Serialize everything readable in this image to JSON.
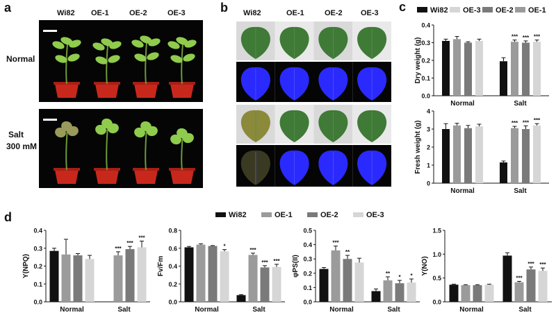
{
  "panel_labels": {
    "a": "a",
    "b": "b",
    "c": "c",
    "d": "d"
  },
  "panel_a": {
    "genotypes": [
      "Wi82",
      "OE-1",
      "OE-2",
      "OE-3"
    ],
    "row_normal": "Normal",
    "row_salt_1": "Salt",
    "row_salt_2": "300 mM"
  },
  "panel_b": {
    "genotypes": [
      "Wi82",
      "OE-1",
      "OE-2",
      "OE-3"
    ]
  },
  "colors": {
    "wi82": "#111111",
    "oe1": "#9b9b9b",
    "oe2": "#7a7a7a",
    "oe3": "#d6d6d6",
    "pot": "#c8281c",
    "leaf_healthy": "#3f7a37",
    "leaf_stressed": "#8a8a3a",
    "chlorophyll_fluor": "#2a2aff"
  },
  "chart_data": [
    {
      "id": "c-dry",
      "type": "bar",
      "legend": [
        "Wi82",
        "OE-3",
        "OE-2",
        "OE-1"
      ],
      "ylabel": "Dry weight (g)",
      "categories": [
        "Normal",
        "Salt"
      ],
      "ylim": [
        0,
        0.4
      ],
      "yticks": [
        "0.0",
        "0.1",
        "0.2",
        "0.3",
        "0.4"
      ],
      "series": [
        {
          "name": "Wi82",
          "values": [
            0.31,
            0.195
          ],
          "errors": [
            0.01,
            0.02
          ],
          "sig": [
            "",
            ""
          ]
        },
        {
          "name": "OE-1",
          "values": [
            0.32,
            0.305
          ],
          "errors": [
            0.015,
            0.01
          ],
          "sig": [
            "",
            "***"
          ]
        },
        {
          "name": "OE-2",
          "values": [
            0.3,
            0.3
          ],
          "errors": [
            0.005,
            0.01
          ],
          "sig": [
            "",
            "***"
          ]
        },
        {
          "name": "OE-3",
          "values": [
            0.31,
            0.305
          ],
          "errors": [
            0.01,
            0.01
          ],
          "sig": [
            "",
            "***"
          ]
        }
      ]
    },
    {
      "id": "c-fresh",
      "type": "bar",
      "ylabel": "Fresh weight (g)",
      "categories": [
        "Normal",
        "Salt"
      ],
      "ylim": [
        0,
        4
      ],
      "yticks": [
        "0",
        "1",
        "2",
        "3",
        "4"
      ],
      "series": [
        {
          "name": "Wi82",
          "values": [
            3.0,
            1.15
          ],
          "errors": [
            0.3,
            0.08
          ],
          "sig": [
            "",
            ""
          ]
        },
        {
          "name": "OE-1",
          "values": [
            3.2,
            3.05
          ],
          "errors": [
            0.12,
            0.1
          ],
          "sig": [
            "",
            "***"
          ]
        },
        {
          "name": "OE-2",
          "values": [
            3.05,
            3.0
          ],
          "errors": [
            0.15,
            0.18
          ],
          "sig": [
            "",
            "***"
          ]
        },
        {
          "name": "OE-3",
          "values": [
            3.15,
            3.2
          ],
          "errors": [
            0.12,
            0.1
          ],
          "sig": [
            "",
            "***"
          ]
        }
      ]
    },
    {
      "id": "d-legend",
      "type": "legend",
      "legend": [
        "Wi82",
        "OE-1",
        "OE-2",
        "OE-3"
      ]
    },
    {
      "id": "d-npq",
      "type": "bar",
      "ylabel": "Y(NPQ)",
      "categories": [
        "Normal",
        "Salt"
      ],
      "ylim": [
        0,
        0.4
      ],
      "yticks": [
        "0.0",
        "0.1",
        "0.2",
        "0.3",
        "0.4"
      ],
      "series": [
        {
          "name": "Wi82",
          "values": [
            0.285,
            0
          ],
          "errors": [
            0.015,
            0
          ],
          "sig": [
            "",
            ""
          ]
        },
        {
          "name": "OE-1",
          "values": [
            0.265,
            0.26
          ],
          "errors": [
            0.085,
            0.02
          ],
          "sig": [
            "",
            "***"
          ]
        },
        {
          "name": "OE-2",
          "values": [
            0.26,
            0.295
          ],
          "errors": [
            0.01,
            0.015
          ],
          "sig": [
            "",
            "***"
          ]
        },
        {
          "name": "OE-3",
          "values": [
            0.24,
            0.305
          ],
          "errors": [
            0.02,
            0.035
          ],
          "sig": [
            "",
            "***"
          ]
        }
      ]
    },
    {
      "id": "d-fvfm",
      "type": "bar",
      "ylabel": "Fv/Fm",
      "categories": [
        "Normal",
        "Salt"
      ],
      "ylim": [
        0,
        0.8
      ],
      "yticks": [
        "0.0",
        "0.2",
        "0.4",
        "0.6",
        "0.8"
      ],
      "series": [
        {
          "name": "Wi82",
          "values": [
            0.61,
            0.075
          ],
          "errors": [
            0.01,
            0.005
          ],
          "sig": [
            "",
            ""
          ]
        },
        {
          "name": "OE-1",
          "values": [
            0.64,
            0.525
          ],
          "errors": [
            0.01,
            0.02
          ],
          "sig": [
            "",
            "***"
          ]
        },
        {
          "name": "OE-2",
          "values": [
            0.625,
            0.385
          ],
          "errors": [
            0.005,
            0.02
          ],
          "sig": [
            "",
            "***"
          ]
        },
        {
          "name": "OE-3",
          "values": [
            0.565,
            0.39
          ],
          "errors": [
            0.02,
            0.03
          ],
          "sig": [
            "*",
            "***"
          ]
        }
      ]
    },
    {
      "id": "d-phips",
      "type": "bar",
      "ylabel": "φPS(II)",
      "categories": [
        "Normal",
        "Salt"
      ],
      "ylim": [
        0,
        0.5
      ],
      "yticks": [
        "0.0",
        "0.1",
        "0.2",
        "0.3",
        "0.4",
        "0.5"
      ],
      "series": [
        {
          "name": "Wi82",
          "values": [
            0.23,
            0.075
          ],
          "errors": [
            0.01,
            0.015
          ],
          "sig": [
            "",
            ""
          ]
        },
        {
          "name": "OE-1",
          "values": [
            0.36,
            0.15
          ],
          "errors": [
            0.03,
            0.025
          ],
          "sig": [
            "***",
            "**"
          ]
        },
        {
          "name": "OE-2",
          "values": [
            0.3,
            0.13
          ],
          "errors": [
            0.025,
            0.02
          ],
          "sig": [
            "**",
            "*"
          ]
        },
        {
          "name": "OE-3",
          "values": [
            0.275,
            0.135
          ],
          "errors": [
            0.03,
            0.025
          ],
          "sig": [
            "",
            "*"
          ]
        }
      ]
    },
    {
      "id": "d-yno",
      "type": "bar",
      "ylabel": "Y(NO)",
      "categories": [
        "Normal",
        "Salt"
      ],
      "ylim": [
        0,
        1.5
      ],
      "yticks": [
        "0.0",
        "0.5",
        "1.0",
        "1.5"
      ],
      "series": [
        {
          "name": "Wi82",
          "values": [
            0.36,
            0.97
          ],
          "errors": [
            0.01,
            0.06
          ],
          "sig": [
            "",
            ""
          ]
        },
        {
          "name": "OE-1",
          "values": [
            0.35,
            0.41
          ],
          "errors": [
            0.01,
            0.02
          ],
          "sig": [
            "",
            "***"
          ]
        },
        {
          "name": "OE-2",
          "values": [
            0.35,
            0.68
          ],
          "errors": [
            0.01,
            0.05
          ],
          "sig": [
            "",
            "***"
          ]
        },
        {
          "name": "OE-3",
          "values": [
            0.36,
            0.65
          ],
          "errors": [
            0.01,
            0.06
          ],
          "sig": [
            "",
            "***"
          ]
        }
      ]
    }
  ]
}
